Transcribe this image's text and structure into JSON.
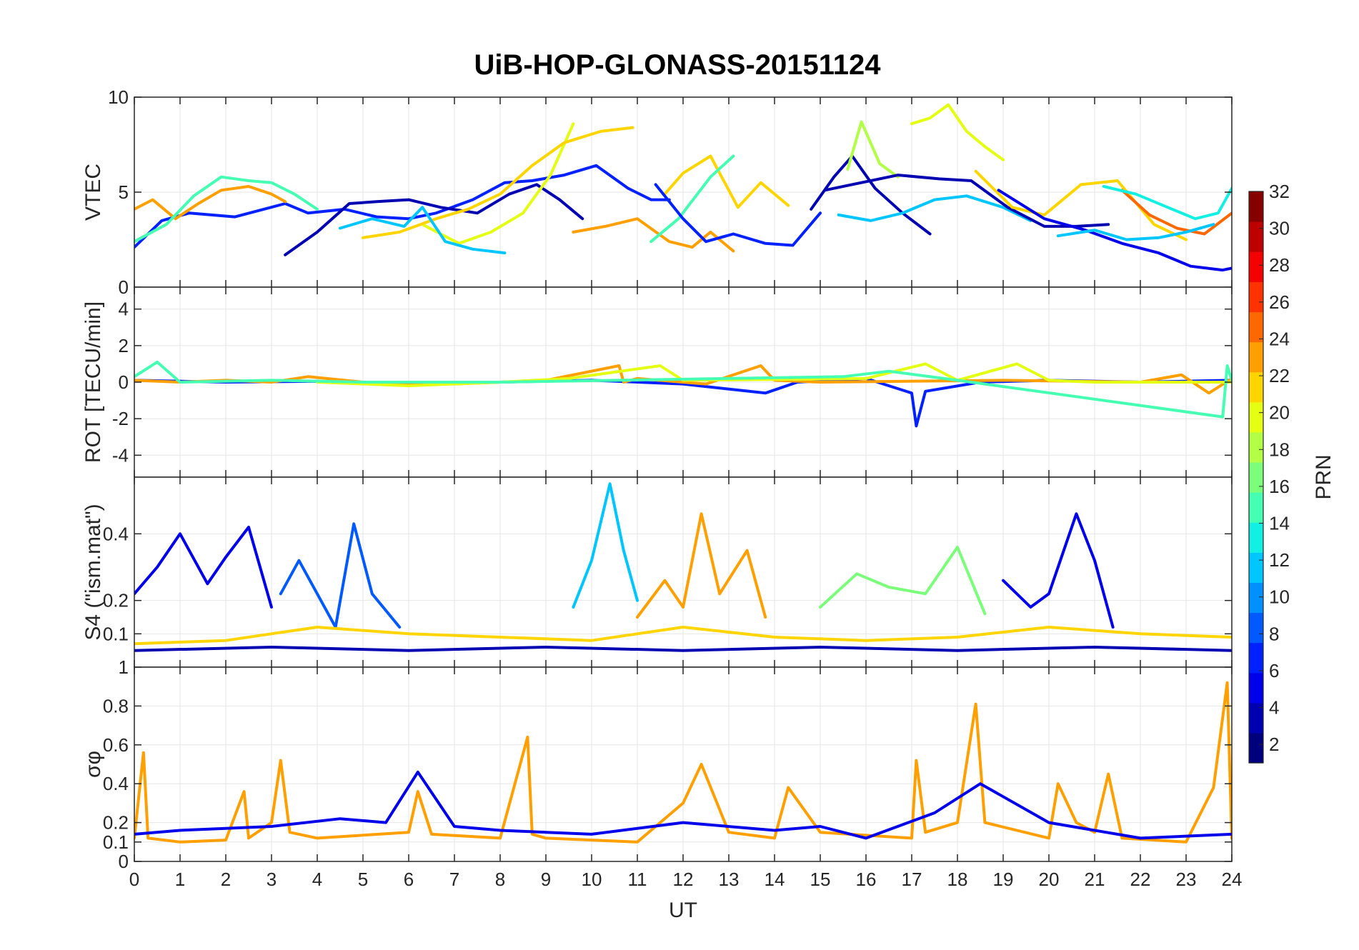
{
  "chart_data": {
    "type": "line",
    "title": "UiB-HOP-GLONASS-20151124",
    "xlabel": "UT",
    "x_ticks": [
      "0",
      "1",
      "2",
      "3",
      "4",
      "5",
      "6",
      "7",
      "8",
      "9",
      "10",
      "11",
      "12",
      "13",
      "14",
      "15",
      "16",
      "17",
      "18",
      "19",
      "20",
      "21",
      "22",
      "23",
      "24"
    ],
    "xlim": [
      0,
      24
    ],
    "grid": true,
    "colorbar": {
      "label": "PRN",
      "ticks": [
        "2",
        "4",
        "6",
        "8",
        "10",
        "12",
        "14",
        "16",
        "18",
        "20",
        "22",
        "24",
        "26",
        "28",
        "30",
        "32"
      ],
      "range": [
        1,
        32
      ],
      "colormap": "jet",
      "colors": [
        "#00007f",
        "#0000b3",
        "#0000ea",
        "#0021ff",
        "#005aff",
        "#0090ff",
        "#00c6ff",
        "#12f0e4",
        "#45ffb2",
        "#7bff7b",
        "#b2ff45",
        "#e4ff12",
        "#ffd500",
        "#ff9f00",
        "#ff6800",
        "#ff3200",
        "#f50000",
        "#be0000",
        "#870000"
      ]
    },
    "panels": [
      {
        "ylabel": "VTEC",
        "ylim": [
          0,
          10
        ],
        "yticks": [
          "0",
          "5",
          "10"
        ],
        "series": [
          {
            "prn": 6,
            "x": [
              0,
              0.6,
              1.2,
              2.2,
              3.3,
              3.8,
              4.6,
              5.3,
              6,
              6.6,
              7.4,
              8.1,
              8.7,
              9.4,
              10.1,
              10.8,
              11.3,
              11.7
            ],
            "y": [
              2.1,
              3.5,
              3.9,
              3.7,
              4.4,
              3.9,
              4.1,
              3.7,
              3.6,
              3.9,
              4.6,
              5.5,
              5.6,
              5.9,
              6.4,
              5.2,
              4.6,
              4.6
            ]
          },
          {
            "prn": 3,
            "x": [
              3.3,
              4,
              4.7,
              5.3,
              6,
              6.7,
              7.5,
              8.2,
              8.8,
              9.3,
              9.8
            ],
            "y": [
              1.7,
              2.9,
              4.4,
              4.5,
              4.6,
              4.2,
              3.9,
              4.9,
              5.4,
              4.6,
              3.6
            ]
          },
          {
            "prn": 23,
            "x": [
              0,
              0.4,
              0.9,
              1.4,
              1.9,
              2.5,
              3,
              3.3
            ],
            "y": [
              4.1,
              4.6,
              3.6,
              4.4,
              5.1,
              5.3,
              4.9,
              4.5
            ]
          },
          {
            "prn": 15,
            "x": [
              0,
              0.7,
              1.3,
              1.9,
              2.5,
              3,
              3.5,
              4
            ],
            "y": [
              2.4,
              3.3,
              4.8,
              5.8,
              5.6,
              5.5,
              4.9,
              4.1
            ]
          },
          {
            "prn": 19,
            "x": [
              6.3,
              7.1,
              7.8,
              8.5,
              9.1,
              9.6
            ],
            "y": [
              3.3,
              2.3,
              2.9,
              3.9,
              5.9,
              8.6
            ]
          },
          {
            "prn": 21,
            "x": [
              5,
              5.8,
              6.6,
              7.3,
              8,
              8.7,
              9.4,
              10.2,
              10.9
            ],
            "y": [
              2.6,
              2.9,
              3.6,
              4.1,
              4.9,
              6.4,
              7.6,
              8.2,
              8.4
            ]
          },
          {
            "prn": 11,
            "x": [
              4.5,
              5.2,
              5.9,
              6.3,
              6.8,
              7.4,
              8.1
            ],
            "y": [
              3.1,
              3.6,
              3.2,
              4.2,
              2.4,
              2.0,
              1.8
            ]
          },
          {
            "prn": 23,
            "x": [
              9.6,
              10.3,
              11,
              11.7,
              12.2,
              12.6,
              13.1
            ],
            "y": [
              2.9,
              3.2,
              3.6,
              2.4,
              2.1,
              2.9,
              1.9
            ]
          },
          {
            "prn": 21,
            "x": [
              11.6,
              12,
              12.6,
              13.2,
              13.7,
              14.3
            ],
            "y": [
              4.9,
              6,
              6.9,
              4.2,
              5.5,
              4.3
            ]
          },
          {
            "prn": 15,
            "x": [
              11.3,
              11.9,
              12.6,
              13.1
            ],
            "y": [
              2.4,
              3.6,
              5.8,
              6.9
            ]
          },
          {
            "prn": 7,
            "x": [
              11.4,
              12,
              12.5,
              13.1,
              13.8,
              14.4,
              15
            ],
            "y": [
              5.4,
              3.6,
              2.4,
              2.8,
              2.3,
              2.2,
              3.9
            ]
          },
          {
            "prn": 3,
            "x": [
              14.8,
              15.3,
              15.7,
              16.2,
              16.8,
              17.4
            ],
            "y": [
              4.1,
              5.8,
              6.9,
              5.2,
              3.9,
              2.8
            ]
          },
          {
            "prn": 18,
            "x": [
              15.6,
              15.9,
              16.3,
              16.7
            ],
            "y": [
              6.2,
              8.7,
              6.5,
              5.8
            ]
          },
          {
            "prn": 19,
            "x": [
              17,
              17.4,
              17.8,
              18.2,
              18.6,
              19
            ],
            "y": [
              8.6,
              8.9,
              9.6,
              8.2,
              7.4,
              6.7
            ]
          },
          {
            "prn": 12,
            "x": [
              15.4,
              16.1,
              16.8,
              17.5,
              18.2,
              19,
              19.6
            ],
            "y": [
              3.8,
              3.5,
              3.9,
              4.6,
              4.8,
              4.2,
              3.5
            ]
          },
          {
            "prn": 4,
            "x": [
              15.1,
              15.9,
              16.7,
              17.6,
              18.3,
              19.1,
              19.9,
              20.6,
              21.3
            ],
            "y": [
              5.1,
              5.5,
              5.9,
              5.7,
              5.6,
              4.2,
              3.2,
              3.2,
              3.3
            ]
          },
          {
            "prn": 22,
            "x": [
              18.4,
              19.2,
              19.9,
              20.7,
              21.5,
              22.3,
              23
            ],
            "y": [
              6.1,
              4.2,
              3.8,
              5.4,
              5.6,
              3.3,
              2.5
            ]
          },
          {
            "prn": 24,
            "x": [
              21.6,
              22.2,
              22.8,
              23.4,
              24
            ],
            "y": [
              5.1,
              3.8,
              3.1,
              2.8,
              3.9
            ]
          },
          {
            "prn": 5,
            "x": [
              18.9,
              19.9,
              20.8,
              21.6,
              22.4,
              23.1,
              23.8,
              24
            ],
            "y": [
              5.1,
              3.6,
              3.0,
              2.3,
              1.8,
              1.1,
              0.9,
              1.0
            ]
          },
          {
            "prn": 14,
            "x": [
              21.2,
              21.9,
              22.6,
              23.2,
              23.7,
              24
            ],
            "y": [
              5.3,
              4.9,
              4.2,
              3.6,
              3.9,
              5.2
            ]
          },
          {
            "prn": 12,
            "x": [
              20.2,
              21,
              21.7,
              22.4,
              23,
              23.6
            ],
            "y": [
              2.7,
              3.0,
              2.5,
              2.6,
              2.9,
              3.3
            ]
          }
        ]
      },
      {
        "ylabel": "ROT [TECU/min]",
        "ylim": [
          -5.2,
          5.2
        ],
        "yticks": [
          "-4",
          "-2",
          "0",
          "2",
          "4"
        ],
        "series": [
          {
            "prn": 6,
            "x": [
              0,
              2,
              4,
              6,
              8,
              10,
              12,
              13.8,
              14.5,
              16,
              17,
              17.1,
              17.3,
              18.5,
              20,
              22,
              24
            ],
            "y": [
              0.1,
              0,
              0.05,
              -0.1,
              0,
              0.1,
              -0.1,
              -0.6,
              0,
              0.2,
              -0.6,
              -2.4,
              -0.5,
              0,
              0.1,
              0,
              0.1
            ]
          },
          {
            "prn": 23,
            "x": [
              0,
              1,
              2,
              3,
              3.8,
              5,
              7,
              9,
              10.6,
              10.7,
              11,
              12.5,
              13.7,
              14,
              15,
              19,
              22,
              22.9,
              23.5,
              24
            ],
            "y": [
              0.1,
              0,
              0.1,
              0,
              0.3,
              0,
              -0.1,
              0.1,
              0.9,
              0,
              0.2,
              -0.1,
              0.9,
              0.1,
              0,
              0.1,
              0,
              0.4,
              -0.6,
              0.2
            ]
          },
          {
            "prn": 19,
            "x": [
              4,
              6,
              8,
              9.5,
              11.5,
              12,
              16,
              17.3,
              18,
              19.3,
              20,
              21,
              24
            ],
            "y": [
              0,
              -0.2,
              0,
              0.2,
              0.9,
              0.1,
              0.2,
              1.0,
              0.1,
              1.0,
              0.1,
              0,
              0
            ]
          },
          {
            "prn": 15,
            "x": [
              0,
              0.5,
              1,
              3,
              5,
              8,
              15.5,
              16.5,
              18,
              23.8,
              23.9,
              24
            ],
            "y": [
              0.3,
              1.1,
              0,
              0.1,
              0,
              0,
              0.3,
              0.6,
              0.1,
              -1.9,
              0.9,
              0.1
            ]
          }
        ]
      },
      {
        "ylabel": "S4 (\"ism.mat\")",
        "ylim": [
          0,
          0.57
        ],
        "yticks": [
          "0.1",
          "0.2",
          "0.4"
        ],
        "series": [
          {
            "prn": 5,
            "x": [
              0,
              0.5,
              1,
              1.6,
              2,
              2.5,
              3
            ],
            "y": [
              0.22,
              0.3,
              0.4,
              0.25,
              0.33,
              0.42,
              0.18
            ]
          },
          {
            "prn": 9,
            "x": [
              3.2,
              3.6,
              4.4,
              4.8,
              5.2,
              5.8
            ],
            "y": [
              0.22,
              0.32,
              0.12,
              0.43,
              0.22,
              0.12
            ]
          },
          {
            "prn": 12,
            "x": [
              9.6,
              10,
              10.4,
              10.7,
              11
            ],
            "y": [
              0.18,
              0.32,
              0.55,
              0.35,
              0.2
            ]
          },
          {
            "prn": 23,
            "x": [
              11,
              11.6,
              12,
              12.4,
              12.8,
              13.4,
              13.8
            ],
            "y": [
              0.15,
              0.26,
              0.18,
              0.46,
              0.22,
              0.35,
              0.15
            ]
          },
          {
            "prn": 17,
            "x": [
              15,
              15.8,
              16.5,
              17.3,
              18,
              18.6
            ],
            "y": [
              0.18,
              0.28,
              0.24,
              0.22,
              0.36,
              0.16
            ]
          },
          {
            "prn": 5,
            "x": [
              19,
              19.6,
              20,
              20.6,
              21,
              21.4
            ],
            "y": [
              0.26,
              0.18,
              0.22,
              0.46,
              0.32,
              0.12
            ]
          },
          {
            "prn": 22,
            "x": [
              0,
              2,
              3,
              4,
              6,
              8,
              10,
              12,
              14,
              16,
              18,
              20,
              22,
              24
            ],
            "y": [
              0.07,
              0.08,
              0.1,
              0.12,
              0.1,
              0.09,
              0.08,
              0.12,
              0.09,
              0.08,
              0.09,
              0.12,
              0.1,
              0.09
            ]
          },
          {
            "prn": 3,
            "x": [
              0,
              3,
              6,
              9,
              12,
              15,
              18,
              21,
              24
            ],
            "y": [
              0.05,
              0.06,
              0.05,
              0.06,
              0.05,
              0.06,
              0.05,
              0.06,
              0.05
            ]
          }
        ]
      },
      {
        "ylabel": "σφ",
        "ylim": [
          0,
          1
        ],
        "yticks": [
          "0",
          "0.1",
          "0.2",
          "0.4",
          "0.6",
          "0.8",
          "1"
        ],
        "series": [
          {
            "prn": 23,
            "x": [
              0,
              0.2,
              0.3,
              1,
              2,
              2.4,
              2.5,
              3,
              3.2,
              3.4,
              4,
              6,
              6.2,
              6.5,
              8,
              8.6,
              8.7,
              9,
              11,
              11.5,
              12,
              12.4,
              13,
              14,
              14.3,
              15,
              17,
              17.1,
              17.3,
              18,
              18.4,
              18.6,
              20,
              20.2,
              20.6,
              21,
              21.3,
              21.6,
              23,
              23.6,
              23.9,
              24
            ],
            "y": [
              0.12,
              0.56,
              0.12,
              0.1,
              0.11,
              0.36,
              0.12,
              0.2,
              0.52,
              0.15,
              0.12,
              0.15,
              0.36,
              0.14,
              0.12,
              0.64,
              0.14,
              0.12,
              0.1,
              0.2,
              0.3,
              0.5,
              0.15,
              0.12,
              0.38,
              0.15,
              0.12,
              0.52,
              0.15,
              0.2,
              0.81,
              0.2,
              0.12,
              0.4,
              0.2,
              0.15,
              0.45,
              0.12,
              0.1,
              0.38,
              0.92,
              0.12
            ]
          },
          {
            "prn": 5,
            "x": [
              0,
              1,
              2,
              3,
              4.5,
              5.5,
              6.2,
              7,
              8,
              9,
              10,
              12,
              14,
              15,
              16,
              17.5,
              18.5,
              20,
              22,
              24
            ],
            "y": [
              0.14,
              0.16,
              0.17,
              0.18,
              0.22,
              0.2,
              0.46,
              0.18,
              0.16,
              0.15,
              0.14,
              0.2,
              0.16,
              0.18,
              0.12,
              0.25,
              0.4,
              0.2,
              0.12,
              0.14
            ]
          }
        ]
      }
    ]
  }
}
